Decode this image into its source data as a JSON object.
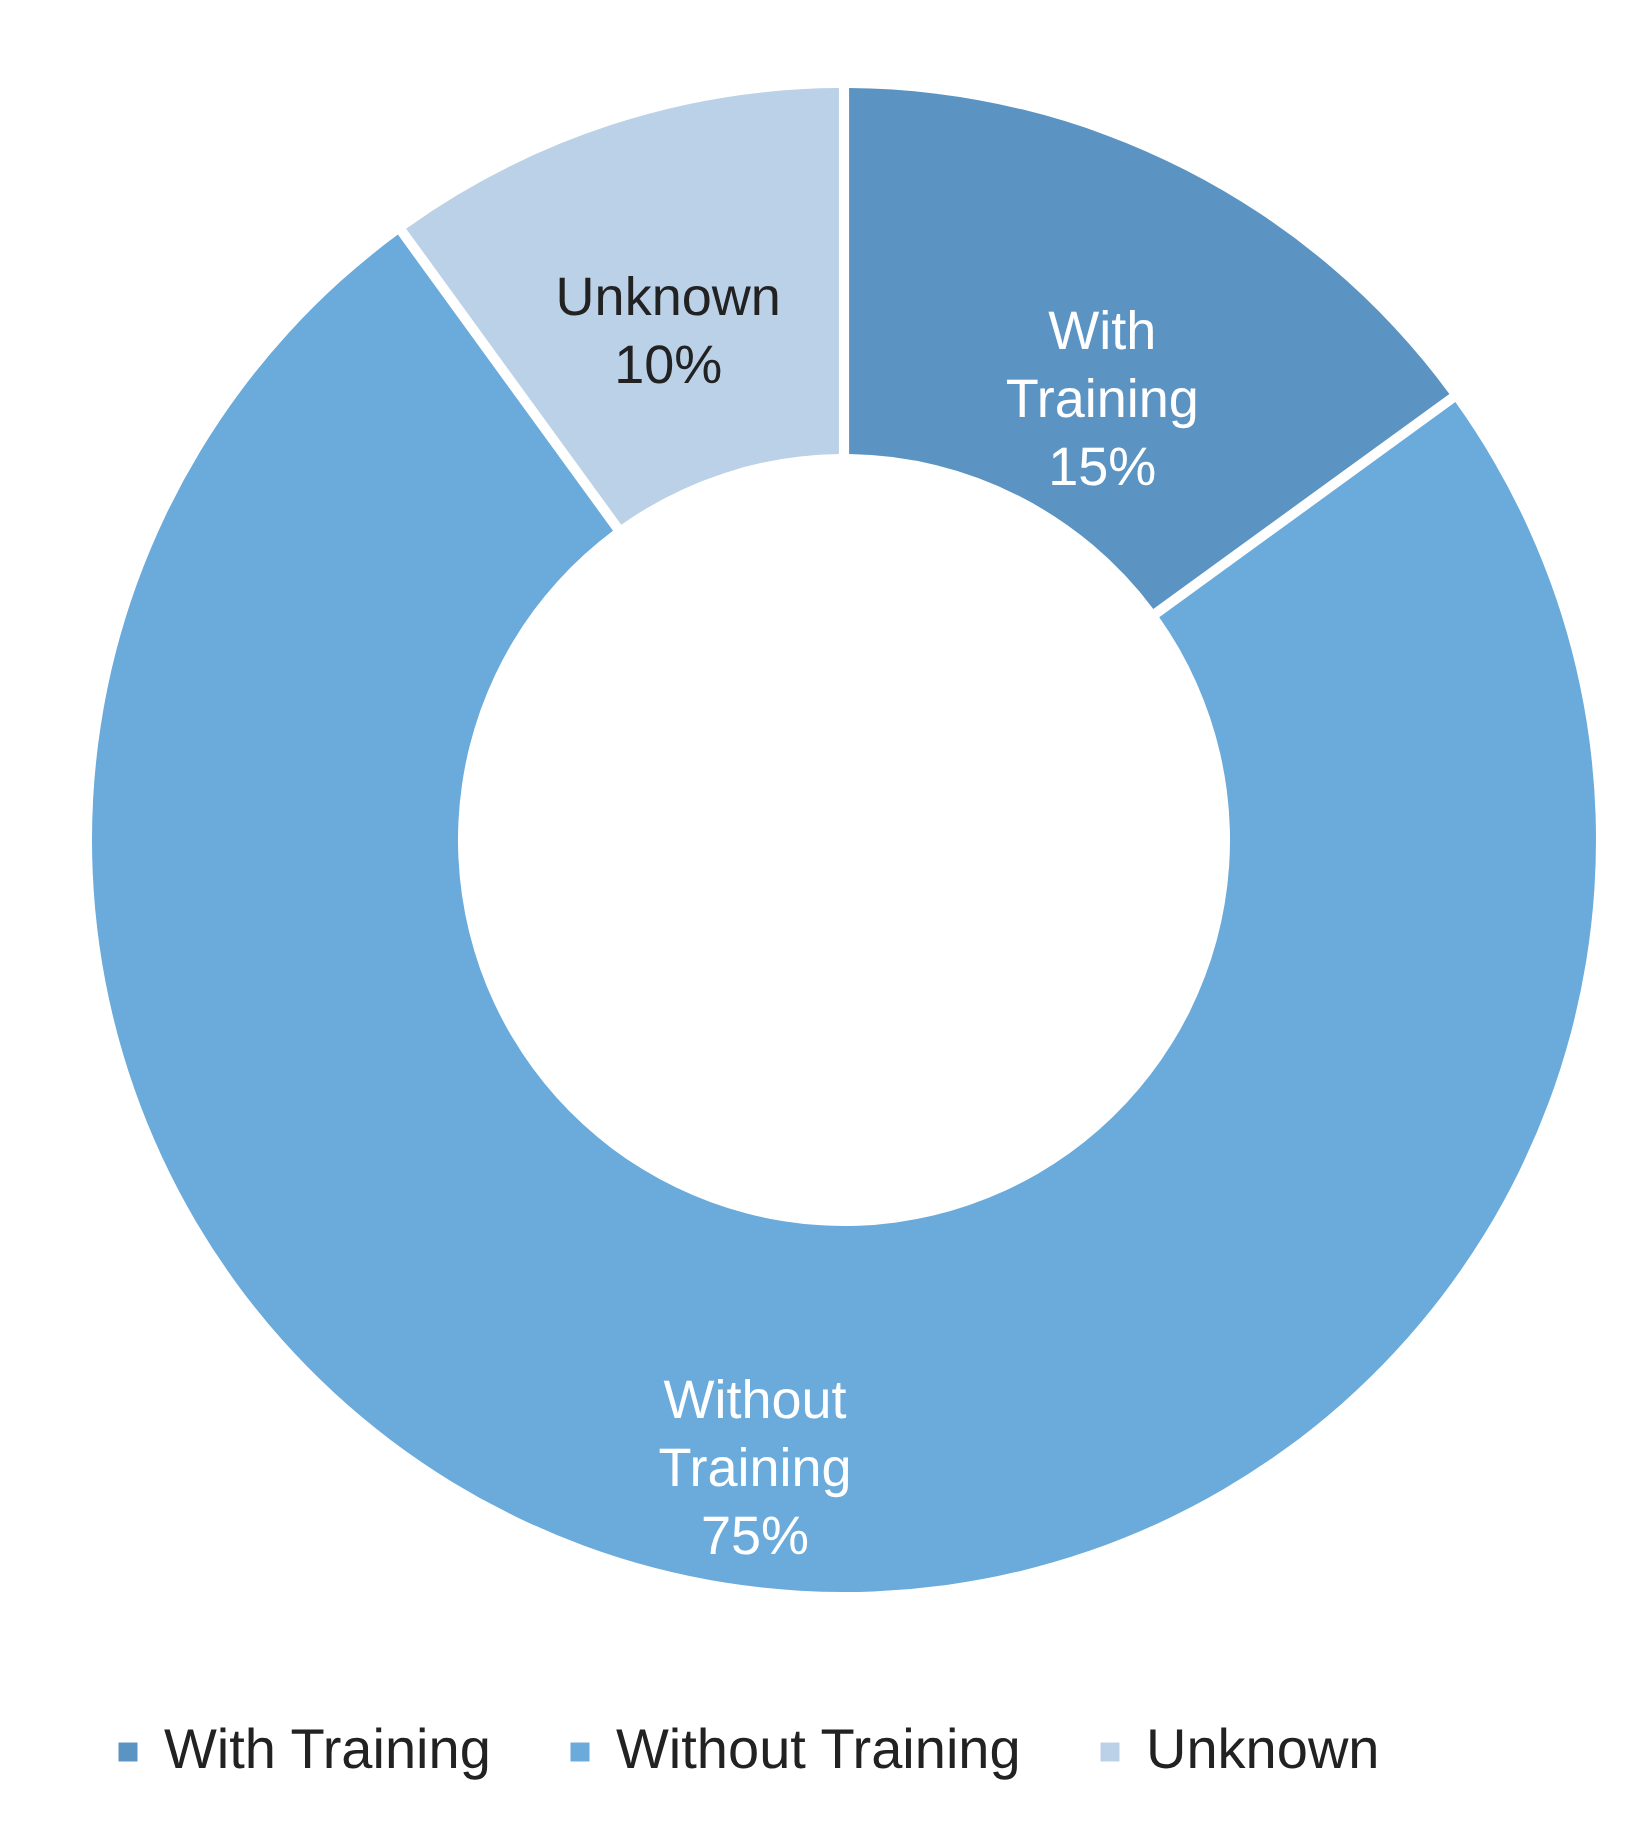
{
  "chart_data": {
    "type": "donut",
    "categories": [
      "With Training",
      "Without Training",
      "Unknown"
    ],
    "values": [
      15,
      75,
      10
    ],
    "colors": [
      "#5b94c3",
      "#6aabdc",
      "#bad1e8"
    ],
    "value_labels": [
      "15%",
      "75%",
      "10%"
    ],
    "legend": "bottom"
  }
}
